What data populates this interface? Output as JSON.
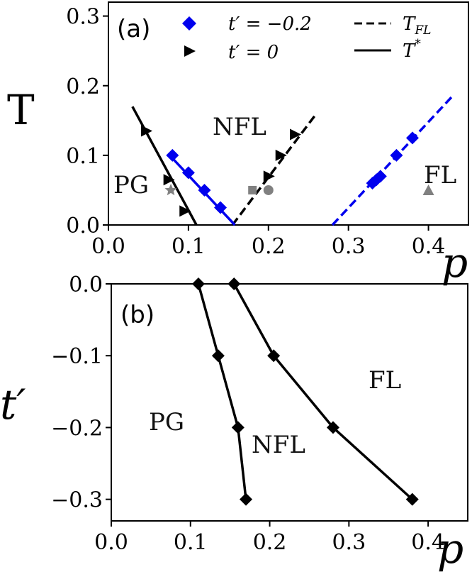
{
  "colors": {
    "blue": "#0000ee",
    "black": "#000000",
    "gray": "#808080"
  },
  "chart_data": [
    {
      "panel_label": "(a)",
      "type": "line",
      "xlabel": "p",
      "ylabel": "T",
      "xlim": [
        0.0,
        0.45
      ],
      "ylim": [
        0.0,
        0.32
      ],
      "xticks": [
        "0.0",
        "0.1",
        "0.2",
        "0.3",
        "0.4"
      ],
      "yticks": [
        "0.0",
        "0.1",
        "0.2",
        "0.3"
      ],
      "legend": {
        "placement": "top",
        "entries": [
          {
            "marker": "diamond",
            "color": "#0000ee",
            "label": "t′ = −0.2"
          },
          {
            "marker": "triangle-right",
            "color": "#000000",
            "label": "t′ = 0"
          },
          {
            "line": "dashed",
            "color": "#000000",
            "label": "T_FL"
          },
          {
            "line": "solid",
            "color": "#000000",
            "label": "T*"
          }
        ]
      },
      "regions": [
        "PG",
        "NFL",
        "FL"
      ],
      "series": [
        {
          "color": "#000000",
          "style": "solid",
          "x": [
            0.03,
            0.11
          ],
          "y": [
            0.17,
            0.0
          ]
        },
        {
          "color": "#000000",
          "style": "dashed",
          "x": [
            0.155,
            0.26
          ],
          "y": [
            0.0,
            0.16
          ]
        },
        {
          "color": "#0000ee",
          "style": "solid",
          "x": [
            0.075,
            0.158
          ],
          "y": [
            0.102,
            0.0
          ]
        },
        {
          "color": "#0000ee",
          "style": "dashed",
          "x": [
            0.28,
            0.43
          ],
          "y": [
            0.0,
            0.185
          ]
        },
        {
          "color": "#000000",
          "marker": "triangle-right",
          "x": [
            0.047,
            0.075,
            0.095,
            0.233,
            0.215,
            0.2
          ],
          "y": [
            0.135,
            0.065,
            0.02,
            0.13,
            0.1,
            0.07
          ]
        },
        {
          "color": "#0000ee",
          "marker": "diamond",
          "x": [
            0.08,
            0.1,
            0.12,
            0.14,
            0.33,
            0.335,
            0.34,
            0.36,
            0.38
          ],
          "y": [
            0.1,
            0.075,
            0.05,
            0.025,
            0.06,
            0.065,
            0.07,
            0.1,
            0.125
          ]
        },
        {
          "color": "#808080",
          "marker": "star",
          "x": [
            0.078
          ],
          "y": [
            0.05
          ]
        },
        {
          "color": "#808080",
          "marker": "square",
          "x": [
            0.18
          ],
          "y": [
            0.05
          ]
        },
        {
          "color": "#808080",
          "marker": "circle",
          "x": [
            0.2
          ],
          "y": [
            0.05
          ]
        },
        {
          "color": "#808080",
          "marker": "triangle-up",
          "x": [
            0.4
          ],
          "y": [
            0.05
          ]
        }
      ]
    },
    {
      "panel_label": "(b)",
      "type": "line",
      "xlabel": "p",
      "ylabel": "t′",
      "xlim": [
        0.0,
        0.45
      ],
      "ylim": [
        -0.33,
        0.0
      ],
      "xticks": [
        "0.0",
        "0.1",
        "0.2",
        "0.3",
        "0.4"
      ],
      "yticks": [
        "0.0",
        "−0.1",
        "−0.2",
        "−0.3"
      ],
      "regions": [
        "PG",
        "NFL",
        "FL"
      ],
      "series": [
        {
          "color": "#000000",
          "marker": "diamond",
          "x": [
            0.11,
            0.135,
            0.16,
            0.17
          ],
          "y": [
            0.0,
            -0.1,
            -0.2,
            -0.3
          ]
        },
        {
          "color": "#000000",
          "marker": "diamond",
          "x": [
            0.155,
            0.205,
            0.28,
            0.38
          ],
          "y": [
            0.0,
            -0.1,
            -0.2,
            -0.3
          ]
        }
      ]
    }
  ]
}
